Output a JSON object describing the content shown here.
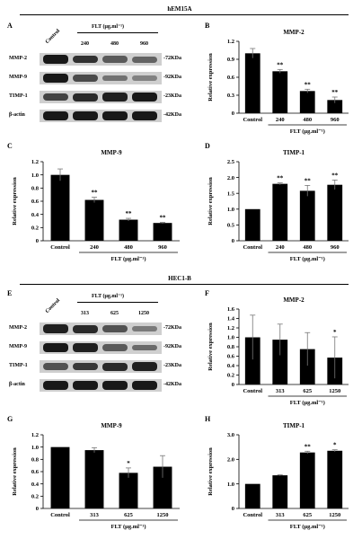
{
  "sections": [
    {
      "title": "hEM15A"
    },
    {
      "title": "HEC1-B"
    }
  ],
  "western_blots": [
    {
      "panel": "A",
      "control_label": "Control",
      "group_label": "FLT (μg.ml⁻¹)",
      "lanes": [
        "240",
        "480",
        "960"
      ],
      "rows": [
        {
          "name": "MMP-2",
          "kda": "-72KDa",
          "intensity": [
            0.95,
            0.8,
            0.55,
            0.5
          ]
        },
        {
          "name": "MMP-9",
          "kda": "-92KDa",
          "intensity": [
            0.95,
            0.65,
            0.4,
            0.3
          ]
        },
        {
          "name": "TIMP-1",
          "kda": "-23KDa",
          "intensity": [
            0.7,
            0.85,
            0.9,
            0.95
          ]
        },
        {
          "name": "β-actin",
          "kda": "-42KDa",
          "intensity": [
            0.95,
            0.95,
            0.95,
            0.95
          ]
        }
      ]
    },
    {
      "panel": "E",
      "control_label": "Control",
      "group_label": "FLT (μg.ml⁻¹)",
      "lanes": [
        "313",
        "625",
        "1250"
      ],
      "rows": [
        {
          "name": "MMP-2",
          "kda": "-72KDa",
          "intensity": [
            0.9,
            0.85,
            0.6,
            0.35
          ]
        },
        {
          "name": "MMP-9",
          "kda": "-92KDa",
          "intensity": [
            0.95,
            0.9,
            0.55,
            0.45
          ]
        },
        {
          "name": "TIMP-1",
          "kda": "-23KDa",
          "intensity": [
            0.6,
            0.75,
            0.85,
            0.9
          ]
        },
        {
          "name": "β-actin",
          "kda": "-42KDa",
          "intensity": [
            0.95,
            0.95,
            0.95,
            0.95
          ]
        }
      ]
    }
  ],
  "chart_data": [
    {
      "panel": "B",
      "type": "bar",
      "title": "MMP-2",
      "ylabel": "Relative expression",
      "xgroup": "FLT (μg.ml⁻¹)",
      "categories": [
        "Control",
        "240",
        "480",
        "960"
      ],
      "values": [
        1.0,
        0.7,
        0.37,
        0.22
      ],
      "errors": [
        0.08,
        0.03,
        0.03,
        0.05
      ],
      "sig": [
        "",
        "**",
        "**",
        "**"
      ],
      "ylim": [
        0,
        1.2
      ],
      "yticks": [
        "0",
        "0.3",
        "0.6",
        "0.9",
        "1.2"
      ]
    },
    {
      "panel": "C",
      "type": "bar",
      "title": "MMP-9",
      "ylabel": "Relative expression",
      "xgroup": "FLT (μg.ml⁻¹)",
      "categories": [
        "Control",
        "240",
        "480",
        "960"
      ],
      "values": [
        1.0,
        0.62,
        0.32,
        0.27
      ],
      "errors": [
        0.09,
        0.04,
        0.02,
        0.01
      ],
      "sig": [
        "",
        "**",
        "**",
        "**"
      ],
      "ylim": [
        0,
        1.2
      ],
      "yticks": [
        "0",
        "0.2",
        "0.4",
        "0.6",
        "0.8",
        "1.0",
        "1.2"
      ]
    },
    {
      "panel": "D",
      "type": "bar",
      "title": "TIMP-1",
      "ylabel": "Relative expression",
      "xgroup": "FLT (μg.ml⁻¹)",
      "categories": [
        "Control",
        "240",
        "480",
        "960"
      ],
      "values": [
        1.0,
        1.8,
        1.58,
        1.77
      ],
      "errors": [
        0.0,
        0.03,
        0.17,
        0.15
      ],
      "sig": [
        "",
        "**",
        "**",
        "**"
      ],
      "ylim": [
        0,
        2.5
      ],
      "yticks": [
        "0",
        "0.5",
        "1.0",
        "1.5",
        "2.0",
        "2.5"
      ]
    },
    {
      "panel": "F",
      "type": "bar",
      "title": "MMP-2",
      "ylabel": "Relative expression",
      "xgroup": "FLT (μg.ml⁻¹)",
      "categories": [
        "Control",
        "313",
        "625",
        "1250"
      ],
      "values": [
        1.0,
        0.95,
        0.75,
        0.57
      ],
      "errors": [
        0.47,
        0.33,
        0.35,
        0.44
      ],
      "sig": [
        "",
        "",
        "",
        "*"
      ],
      "ylim": [
        0,
        1.6
      ],
      "yticks": [
        "0",
        "0.2",
        "0.4",
        "0.6",
        "0.8",
        "1.0",
        "1.2",
        "1.4",
        "1.6"
      ]
    },
    {
      "panel": "G",
      "type": "bar",
      "title": "MMP-9",
      "ylabel": "Relative expression",
      "xgroup": "FLT (μg.ml⁻¹)",
      "categories": [
        "Control",
        "313",
        "625",
        "1250"
      ],
      "values": [
        1.0,
        0.95,
        0.58,
        0.68
      ],
      "errors": [
        0.0,
        0.04,
        0.08,
        0.18
      ],
      "sig": [
        "",
        "",
        "*",
        ""
      ],
      "ylim": [
        0,
        1.2
      ],
      "yticks": [
        "0",
        "0.2",
        "0.4",
        "0.6",
        "0.8",
        "1.0",
        "1.2"
      ]
    },
    {
      "panel": "H",
      "type": "bar",
      "title": "TIMP-1",
      "ylabel": "Relative expression",
      "xgroup": "FLT (μg.ml⁻¹)",
      "categories": [
        "Control",
        "313",
        "625",
        "1250"
      ],
      "values": [
        1.0,
        1.35,
        2.28,
        2.35
      ],
      "errors": [
        0.0,
        0.02,
        0.05,
        0.04
      ],
      "sig": [
        "",
        "",
        "**",
        "*"
      ],
      "ylim": [
        0,
        3.0
      ],
      "yticks": [
        "0",
        "1.0",
        "2.0",
        "3.0"
      ]
    }
  ]
}
